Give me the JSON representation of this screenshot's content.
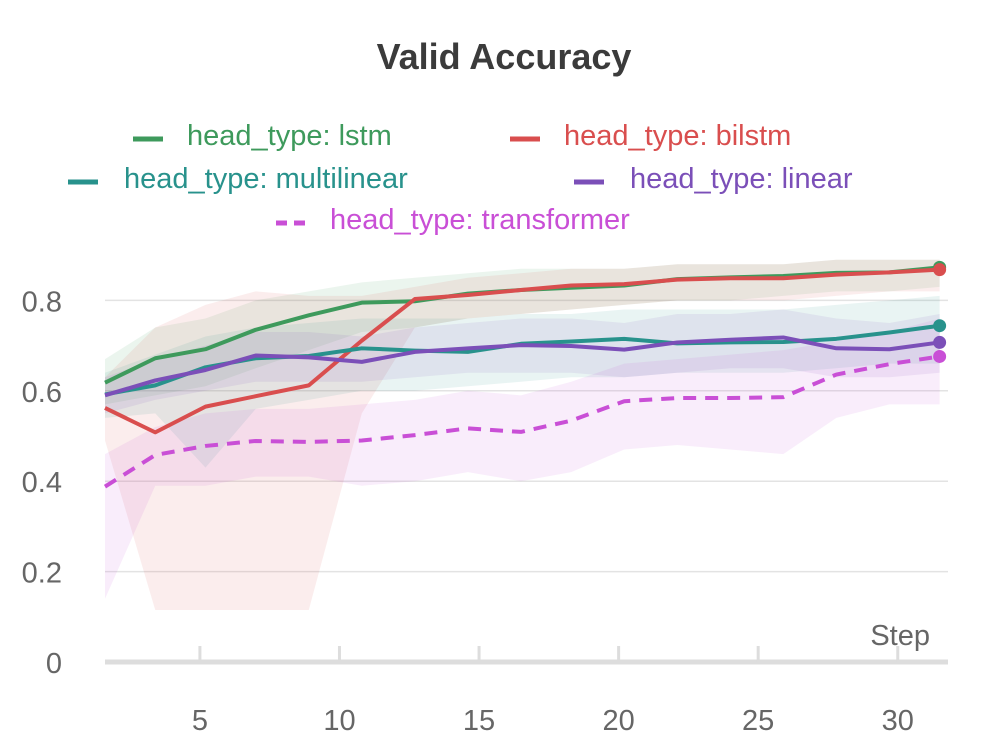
{
  "chart_data": {
    "type": "line",
    "title": "Valid Accuracy",
    "xlabel": "Step",
    "ylabel": "",
    "xlim": [
      1.6,
      31.8
    ],
    "ylim": [
      0,
      0.95
    ],
    "x_ticks": [
      5,
      10,
      15,
      20,
      25,
      30
    ],
    "y_ticks": [
      0,
      0.2,
      0.4,
      0.6,
      0.8
    ],
    "y_tick_labels": [
      "0",
      "0.2",
      "0.4",
      "0.6",
      "0.8"
    ],
    "grid": "horizontal",
    "legend_position": "top",
    "series": [
      {
        "name": "head_type: lstm",
        "color": "#3e9a5c",
        "style": "solid",
        "x": [
          1.6,
          3.4,
          5.2,
          7.0,
          8.9,
          10.8,
          12.7,
          14.6,
          16.5,
          18.3,
          20.2,
          22.1,
          24.0,
          25.9,
          27.8,
          29.7,
          31.5
        ],
        "y": [
          0.618,
          0.672,
          0.692,
          0.735,
          0.767,
          0.795,
          0.798,
          0.815,
          0.823,
          0.828,
          0.833,
          0.847,
          0.851,
          0.854,
          0.861,
          0.862,
          0.873
        ],
        "band_low": [
          0.57,
          0.59,
          0.61,
          0.65,
          0.69,
          0.73,
          0.74,
          0.76,
          0.77,
          0.78,
          0.79,
          0.8,
          0.8,
          0.81,
          0.82,
          0.82,
          0.83
        ],
        "band_high": [
          0.67,
          0.74,
          0.76,
          0.8,
          0.82,
          0.84,
          0.85,
          0.86,
          0.87,
          0.87,
          0.87,
          0.88,
          0.88,
          0.88,
          0.89,
          0.89,
          0.89
        ]
      },
      {
        "name": "head_type: bilstm",
        "color": "#d94e4e",
        "style": "solid",
        "x": [
          1.6,
          3.4,
          5.2,
          7.0,
          8.9,
          10.8,
          12.7,
          14.6,
          16.5,
          18.3,
          20.2,
          22.1,
          24.0,
          25.9,
          27.8,
          29.7,
          31.5
        ],
        "y": [
          0.562,
          0.508,
          0.565,
          0.588,
          0.612,
          0.711,
          0.803,
          0.812,
          0.823,
          0.833,
          0.836,
          0.846,
          0.849,
          0.849,
          0.857,
          0.862,
          0.868
        ],
        "band_low": [
          0.49,
          0.115,
          0.115,
          0.115,
          0.115,
          0.55,
          0.74,
          0.76,
          0.77,
          0.78,
          0.79,
          0.8,
          0.8,
          0.8,
          0.81,
          0.82,
          0.82
        ],
        "band_high": [
          0.63,
          0.74,
          0.79,
          0.82,
          0.81,
          0.81,
          0.83,
          0.85,
          0.86,
          0.87,
          0.87,
          0.88,
          0.88,
          0.88,
          0.89,
          0.89,
          0.89
        ]
      },
      {
        "name": "head_type: multilinear",
        "color": "#28928c",
        "style": "solid",
        "x": [
          1.6,
          3.4,
          5.2,
          7.0,
          8.9,
          10.8,
          12.7,
          14.6,
          16.5,
          18.3,
          20.2,
          22.1,
          24.0,
          25.9,
          27.8,
          29.7,
          31.5
        ],
        "y": [
          0.592,
          0.612,
          0.652,
          0.672,
          0.677,
          0.694,
          0.689,
          0.686,
          0.704,
          0.709,
          0.715,
          0.705,
          0.707,
          0.708,
          0.715,
          0.729,
          0.744
        ],
        "band_low": [
          0.54,
          0.55,
          0.43,
          0.56,
          0.58,
          0.6,
          0.6,
          0.61,
          0.62,
          0.63,
          0.63,
          0.64,
          0.64,
          0.64,
          0.65,
          0.66,
          0.66
        ],
        "band_high": [
          0.64,
          0.68,
          0.72,
          0.74,
          0.75,
          0.76,
          0.76,
          0.76,
          0.77,
          0.77,
          0.78,
          0.78,
          0.78,
          0.78,
          0.79,
          0.8,
          0.81
        ]
      },
      {
        "name": "head_type: linear",
        "color": "#7b4fb8",
        "style": "solid",
        "x": [
          1.6,
          3.4,
          5.2,
          7.0,
          8.9,
          10.8,
          12.7,
          14.6,
          16.5,
          18.3,
          20.2,
          22.1,
          24.0,
          25.9,
          27.8,
          29.7,
          31.5
        ],
        "y": [
          0.59,
          0.623,
          0.646,
          0.678,
          0.674,
          0.664,
          0.686,
          0.694,
          0.701,
          0.699,
          0.691,
          0.707,
          0.713,
          0.718,
          0.694,
          0.692,
          0.707
        ],
        "band_low": [
          0.55,
          0.58,
          0.6,
          0.62,
          0.62,
          0.62,
          0.63,
          0.64,
          0.64,
          0.64,
          0.63,
          0.64,
          0.65,
          0.65,
          0.63,
          0.63,
          0.64
        ],
        "band_high": [
          0.63,
          0.67,
          0.7,
          0.73,
          0.73,
          0.72,
          0.74,
          0.75,
          0.76,
          0.76,
          0.75,
          0.77,
          0.77,
          0.78,
          0.76,
          0.75,
          0.77
        ]
      },
      {
        "name": "head_type: transformer",
        "color": "#c94fd6",
        "style": "dashed",
        "x": [
          1.6,
          3.4,
          5.2,
          7.0,
          8.9,
          10.8,
          12.7,
          14.6,
          16.5,
          18.3,
          20.2,
          22.1,
          24.0,
          25.9,
          27.8,
          29.7,
          31.5
        ],
        "y": [
          0.388,
          0.458,
          0.478,
          0.489,
          0.487,
          0.49,
          0.502,
          0.517,
          0.509,
          0.534,
          0.577,
          0.584,
          0.584,
          0.586,
          0.636,
          0.659,
          0.676
        ],
        "band_low": [
          0.14,
          0.39,
          0.39,
          0.41,
          0.41,
          0.39,
          0.4,
          0.42,
          0.4,
          0.42,
          0.47,
          0.48,
          0.47,
          0.46,
          0.54,
          0.57,
          0.57
        ],
        "band_high": [
          0.46,
          0.52,
          0.55,
          0.56,
          0.56,
          0.57,
          0.58,
          0.6,
          0.59,
          0.62,
          0.66,
          0.67,
          0.68,
          0.69,
          0.71,
          0.73,
          0.76
        ]
      }
    ]
  }
}
